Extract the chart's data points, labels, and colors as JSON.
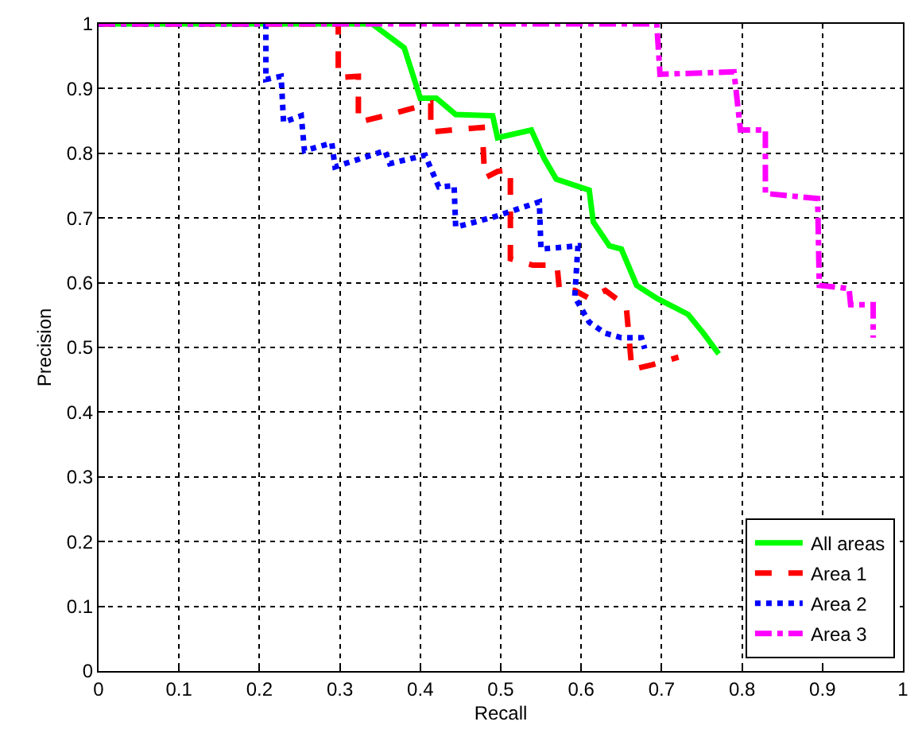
{
  "chart_data": {
    "type": "line",
    "xlabel": "Recall",
    "ylabel": "Precision",
    "xlim": [
      0,
      1
    ],
    "ylim": [
      0,
      1
    ],
    "xticks": [
      0,
      0.1,
      0.2,
      0.3,
      0.4,
      0.5,
      0.6,
      0.7,
      0.8,
      0.9,
      1
    ],
    "yticks": [
      0,
      0.1,
      0.2,
      0.3,
      0.4,
      0.5,
      0.6,
      0.7,
      0.8,
      0.9,
      1
    ],
    "grid": true,
    "legend": "bottom right",
    "series": [
      {
        "name": "All areas",
        "color": "#00ff00",
        "line_style": "solid",
        "x": [
          0,
          0.34,
          0.38,
          0.4,
          0.42,
          0.444,
          0.49,
          0.496,
          0.538,
          0.554,
          0.569,
          0.61,
          0.615,
          0.635,
          0.65,
          0.669,
          0.694,
          0.733,
          0.752,
          0.771
        ],
        "values": [
          1,
          1,
          0.963,
          0.885,
          0.885,
          0.86,
          0.858,
          0.824,
          0.836,
          0.792,
          0.76,
          0.743,
          0.694,
          0.657,
          0.652,
          0.596,
          0.576,
          0.551,
          0.522,
          0.49
        ]
      },
      {
        "name": "Area 1",
        "color": "#ff0000",
        "line_style": "dashed",
        "x": [
          0,
          0.298,
          0.298,
          0.323,
          0.323,
          0.356,
          0.413,
          0.413,
          0.477,
          0.48,
          0.496,
          0.512,
          0.512,
          0.54,
          0.57,
          0.573,
          0.592,
          0.61,
          0.63,
          0.656,
          0.663,
          0.688,
          0.721
        ],
        "values": [
          1,
          1,
          0.917,
          0.919,
          0.848,
          0.858,
          0.877,
          0.833,
          0.84,
          0.762,
          0.772,
          0.775,
          0.637,
          0.627,
          0.627,
          0.588,
          0.588,
          0.576,
          0.588,
          0.564,
          0.466,
          0.473,
          0.485
        ]
      },
      {
        "name": "Area 2",
        "color": "#0000ff",
        "line_style": "dotted",
        "x": [
          0,
          0.208,
          0.208,
          0.227,
          0.23,
          0.252,
          0.256,
          0.29,
          0.294,
          0.356,
          0.362,
          0.406,
          0.423,
          0.442,
          0.444,
          0.49,
          0.548,
          0.55,
          0.596,
          0.592,
          0.61,
          0.63,
          0.65,
          0.675,
          0.679
        ],
        "values": [
          1,
          1,
          0.914,
          0.919,
          0.848,
          0.858,
          0.804,
          0.816,
          0.779,
          0.804,
          0.784,
          0.797,
          0.748,
          0.75,
          0.686,
          0.701,
          0.725,
          0.652,
          0.657,
          0.578,
          0.539,
          0.522,
          0.515,
          0.515,
          0.498
        ]
      },
      {
        "name": "Area 3",
        "color": "#ff00ff",
        "line_style": "dashdot",
        "x": [
          0,
          0.694,
          0.698,
          0.79,
          0.798,
          0.829,
          0.829,
          0.894,
          0.896,
          0.933,
          0.935,
          0.963,
          0.963
        ],
        "values": [
          1,
          1,
          0.922,
          0.926,
          0.836,
          0.836,
          0.738,
          0.73,
          0.596,
          0.591,
          0.566,
          0.566,
          0.515
        ]
      }
    ]
  }
}
